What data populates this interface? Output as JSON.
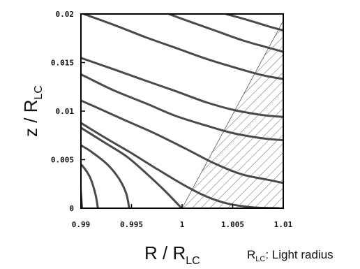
{
  "chart_data": {
    "type": "line",
    "xlabel_main": "R / R",
    "xlabel_sub": "LC",
    "ylabel_main": "z / R",
    "ylabel_sub": "LC",
    "note_main": "R",
    "note_sub": "LC",
    "note_text": ": Light radius",
    "xlim": [
      0.99,
      1.01
    ],
    "ylim": [
      0,
      0.02
    ],
    "x_ticks": [
      {
        "value": 0.99,
        "label": "0.99"
      },
      {
        "value": 0.995,
        "label": "0.995"
      },
      {
        "value": 1.0,
        "label": "1"
      },
      {
        "value": 1.005,
        "label": "1.005"
      },
      {
        "value": 1.01,
        "label": "1.01"
      }
    ],
    "y_ticks": [
      {
        "value": 0,
        "label": "0"
      },
      {
        "value": 0.005,
        "label": "0.005"
      },
      {
        "value": 0.01,
        "label": "0.01"
      },
      {
        "value": 0.015,
        "label": "0.015"
      },
      {
        "value": 0.02,
        "label": "0.02"
      }
    ],
    "shaded_region": {
      "pattern": "diagonal-hatch",
      "polygon": [
        [
          1.0,
          0
        ],
        [
          1.01,
          0
        ],
        [
          1.01,
          0.0193
        ]
      ]
    },
    "series": [
      {
        "points": [
          [
            0.99011,
            0
          ],
          [
            0.99004,
            0.001
          ],
          [
            0.98997,
            0.002
          ]
        ]
      },
      {
        "points": [
          [
            0.99168,
            0
          ],
          [
            0.99142,
            0.0015
          ],
          [
            0.99089,
            0.0032
          ],
          [
            0.9902,
            0.0043
          ],
          [
            0.98997,
            0.0045
          ]
        ]
      },
      {
        "points": [
          [
            0.99477,
            0
          ],
          [
            0.99448,
            0.0015
          ],
          [
            0.99379,
            0.003
          ],
          [
            0.99262,
            0.0045
          ],
          [
            0.99105,
            0.0058
          ],
          [
            0.98997,
            0.0065
          ]
        ]
      },
      {
        "points": [
          [
            0.99995,
            0
          ],
          [
            0.99829,
            0.0018
          ],
          [
            0.99655,
            0.0035
          ],
          [
            0.99455,
            0.0053
          ],
          [
            0.99228,
            0.0068
          ],
          [
            0.98997,
            0.0083
          ]
        ]
      },
      {
        "points": [
          [
            1.00957,
            0
          ],
          [
            1.0069,
            0.0001
          ],
          [
            1.00441,
            0.0005
          ],
          [
            1.00219,
            0.0013
          ],
          [
            0.99999,
            0.0025
          ],
          [
            0.99758,
            0.004
          ],
          [
            0.99479,
            0.0058
          ],
          [
            0.99248,
            0.0072
          ],
          [
            0.98997,
            0.0088
          ]
        ]
      },
      {
        "points": [
          [
            1.01,
            0.0026
          ],
          [
            1.00862,
            0.0029
          ],
          [
            1.00586,
            0.0035
          ],
          [
            1.00303,
            0.0047
          ],
          [
            1.00041,
            0.0061
          ],
          [
            0.99731,
            0.0077
          ],
          [
            0.99448,
            0.009
          ],
          [
            0.99193,
            0.0102
          ],
          [
            0.98997,
            0.0111
          ]
        ]
      },
      {
        "points": [
          [
            1.01,
            0.007
          ],
          [
            1.00793,
            0.0072
          ],
          [
            1.00517,
            0.0077
          ],
          [
            1.00241,
            0.0085
          ],
          [
            0.99938,
            0.0095
          ],
          [
            0.99641,
            0.0108
          ],
          [
            0.99331,
            0.0121
          ],
          [
            0.99055,
            0.0135
          ],
          [
            0.98997,
            0.0138
          ]
        ]
      },
      {
        "points": [
          [
            1.01,
            0.0094
          ],
          [
            1.00793,
            0.0096
          ],
          [
            1.00517,
            0.0101
          ],
          [
            1.00241,
            0.0109
          ],
          [
            0.99924,
            0.0121
          ],
          [
            0.99621,
            0.0132
          ],
          [
            0.99324,
            0.0143
          ],
          [
            0.99048,
            0.0153
          ],
          [
            0.98997,
            0.0155
          ]
        ]
      },
      {
        "points": [
          [
            1.01,
            0.0133
          ],
          [
            1.00793,
            0.0137
          ],
          [
            1.00517,
            0.0145
          ],
          [
            1.00234,
            0.0154
          ],
          [
            0.99938,
            0.0165
          ],
          [
            0.99641,
            0.0176
          ],
          [
            0.99345,
            0.0188
          ],
          [
            0.99055,
            0.0199
          ],
          [
            0.99034,
            0.02
          ]
        ]
      },
      {
        "points": [
          [
            1.01,
            0.0161
          ],
          [
            1.00828,
            0.0166
          ],
          [
            1.00593,
            0.0173
          ],
          [
            1.00324,
            0.0183
          ],
          [
            1.00052,
            0.0193
          ],
          [
            0.99869,
            0.02
          ]
        ]
      },
      {
        "points": [
          [
            1.01,
            0.0183
          ],
          [
            1.00862,
            0.0187
          ],
          [
            1.00641,
            0.0194
          ],
          [
            1.00434,
            0.02
          ]
        ]
      }
    ]
  }
}
